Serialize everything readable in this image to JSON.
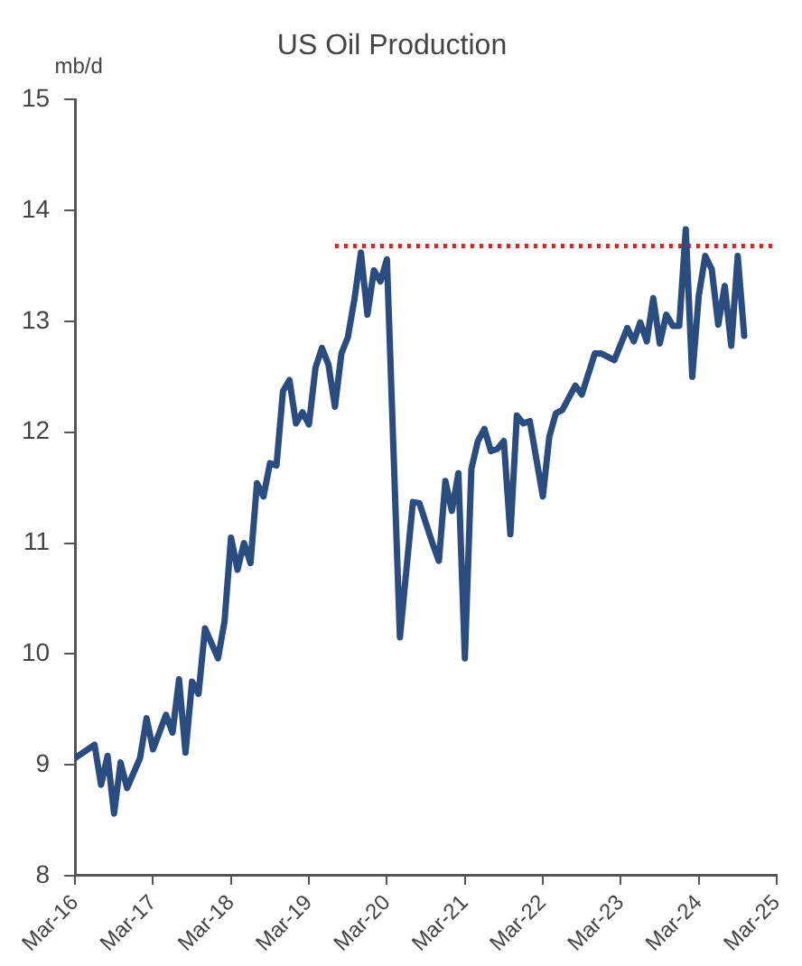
{
  "chart_data": {
    "type": "line",
    "title": "US Oil Production",
    "ylabel": "mb/d",
    "xlim": [
      "2016-03",
      "2025-03"
    ],
    "xticks": [
      {
        "value": "2016-03",
        "label": "Mar-16"
      },
      {
        "value": "2017-03",
        "label": "Mar-17"
      },
      {
        "value": "2018-03",
        "label": "Mar-18"
      },
      {
        "value": "2019-03",
        "label": "Mar-19"
      },
      {
        "value": "2020-03",
        "label": "Mar-20"
      },
      {
        "value": "2021-03",
        "label": "Mar-21"
      },
      {
        "value": "2022-03",
        "label": "Mar-22"
      },
      {
        "value": "2023-03",
        "label": "Mar-23"
      },
      {
        "value": "2024-03",
        "label": "Mar-24"
      },
      {
        "value": "2025-03",
        "label": "Mar-25"
      }
    ],
    "ylim": [
      8,
      15
    ],
    "yticks": [
      8,
      9,
      10,
      11,
      12,
      13,
      14,
      15
    ],
    "grid": false,
    "legend": false,
    "marker": "none",
    "series": [
      {
        "color": "#2b4c7e",
        "line_style": "solid",
        "x": [
          "2016-03",
          "2016-06",
          "2016-07",
          "2016-08",
          "2016-09",
          "2016-10",
          "2016-11",
          "2017-01",
          "2017-02",
          "2017-03",
          "2017-05",
          "2017-06",
          "2017-07",
          "2017-08",
          "2017-09",
          "2017-10",
          "2017-11",
          "2018-01",
          "2018-02",
          "2018-03",
          "2018-04",
          "2018-05",
          "2018-06",
          "2018-07",
          "2018-08",
          "2018-09",
          "2018-10",
          "2018-11",
          "2018-12",
          "2019-01",
          "2019-02",
          "2019-03",
          "2019-04",
          "2019-05",
          "2019-06",
          "2019-07",
          "2019-08",
          "2019-09",
          "2019-10",
          "2019-11",
          "2019-12",
          "2020-01",
          "2020-02",
          "2020-03",
          "2020-05",
          "2020-07",
          "2020-08",
          "2020-10",
          "2020-11",
          "2020-12",
          "2021-01",
          "2021-02",
          "2021-03",
          "2021-04",
          "2021-05",
          "2021-06",
          "2021-07",
          "2021-08",
          "2021-09",
          "2021-10",
          "2021-11",
          "2021-12",
          "2022-01",
          "2022-03",
          "2022-04",
          "2022-05",
          "2022-06",
          "2022-08",
          "2022-09",
          "2022-11",
          "2022-12",
          "2023-02",
          "2023-04",
          "2023-05",
          "2023-06",
          "2023-07",
          "2023-08",
          "2023-09",
          "2023-10",
          "2023-11",
          "2023-12",
          "2024-01",
          "2024-02",
          "2024-03",
          "2024-04",
          "2024-05",
          "2024-06",
          "2024-07",
          "2024-08",
          "2024-09",
          "2024-10"
        ],
        "values": [
          9.06,
          9.18,
          8.82,
          9.08,
          8.56,
          9.02,
          8.79,
          9.06,
          9.42,
          9.14,
          9.45,
          9.29,
          9.77,
          9.11,
          9.75,
          9.64,
          10.23,
          9.96,
          10.29,
          11.05,
          10.76,
          11.0,
          10.82,
          11.54,
          11.42,
          11.72,
          11.7,
          12.37,
          12.47,
          12.08,
          12.18,
          12.07,
          12.58,
          12.76,
          12.61,
          12.23,
          12.71,
          12.86,
          13.2,
          13.62,
          13.06,
          13.46,
          13.36,
          13.56,
          10.15,
          11.37,
          11.36,
          11.0,
          10.84,
          11.56,
          11.29,
          11.63,
          9.96,
          11.67,
          11.92,
          12.03,
          11.83,
          11.85,
          11.92,
          11.08,
          12.15,
          12.08,
          12.1,
          11.42,
          11.96,
          12.17,
          12.2,
          12.42,
          12.34,
          12.71,
          12.71,
          12.65,
          12.94,
          12.82,
          12.99,
          12.82,
          13.21,
          12.8,
          13.06,
          12.96,
          12.96,
          13.83,
          12.5,
          13.23,
          13.59,
          13.47,
          12.97,
          13.32,
          12.78,
          13.59,
          12.87
        ]
      },
      {
        "color": "#e02020",
        "line_style": "dotted",
        "x": [
          "2019-07",
          "2025-03"
        ],
        "values": [
          13.68,
          13.68
        ]
      }
    ]
  }
}
